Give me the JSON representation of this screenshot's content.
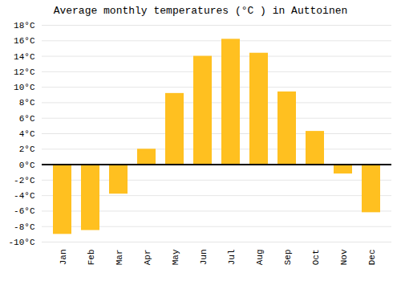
{
  "chart_data": {
    "type": "bar",
    "title": "Average monthly temperatures (°C ) in Auttoinen",
    "categories": [
      "Jan",
      "Feb",
      "Mar",
      "Apr",
      "May",
      "Jun",
      "Jul",
      "Aug",
      "Sep",
      "Oct",
      "Nov",
      "Dec"
    ],
    "values": [
      -9,
      -8.5,
      -3.8,
      2.0,
      9.2,
      14.0,
      16.2,
      14.4,
      9.4,
      4.3,
      -1.2,
      -6.2
    ],
    "color": "#FFC020",
    "ylim": [
      -10,
      18
    ],
    "yticks": [
      {
        "value": -10,
        "label": "-10°C"
      },
      {
        "value": -8,
        "label": "-8°C"
      },
      {
        "value": -6,
        "label": "-6°C"
      },
      {
        "value": -4,
        "label": "-4°C"
      },
      {
        "value": -2,
        "label": "-2°C"
      },
      {
        "value": 0,
        "label": "0°C"
      },
      {
        "value": 2,
        "label": "2°C"
      },
      {
        "value": 4,
        "label": "4°C"
      },
      {
        "value": 6,
        "label": "6°C"
      },
      {
        "value": 8,
        "label": "8°C"
      },
      {
        "value": 10,
        "label": "10°C"
      },
      {
        "value": 12,
        "label": "12°C"
      },
      {
        "value": 14,
        "label": "14°C"
      },
      {
        "value": 16,
        "label": "16°C"
      },
      {
        "value": 18,
        "label": "18°C"
      }
    ],
    "grid": true
  }
}
